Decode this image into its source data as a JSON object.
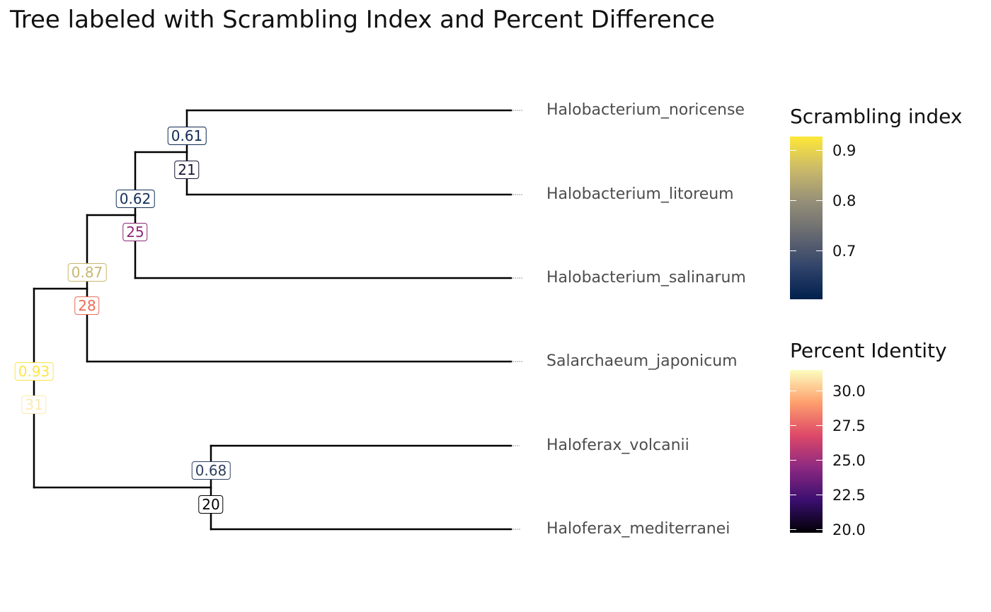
{
  "title": "Tree labeled with Scrambling Index and Percent Difference",
  "tips": [
    "Halobacterium_noricense",
    "Halobacterium_litoreum",
    "Halobacterium_salinarum",
    "Salarchaeum_japonicum",
    "Haloferax_volcanii",
    "Haloferax_mediterranei"
  ],
  "nodes": [
    {
      "id": "n61",
      "scrambling": "0.61",
      "identity": "21",
      "scrambling_color": "#102a55",
      "identity_color": "#1d1438"
    },
    {
      "id": "n62",
      "scrambling": "0.62",
      "identity": "25",
      "scrambling_color": "#13305a",
      "identity_color": "#8c2878"
    },
    {
      "id": "n87",
      "scrambling": "0.87",
      "identity": "28",
      "scrambling_color": "#c9b771",
      "identity_color": "#ec6a56"
    },
    {
      "id": "n93",
      "scrambling": "0.93",
      "identity": "31",
      "scrambling_color": "#fbe548",
      "identity_color": "#fde9b0"
    },
    {
      "id": "n68",
      "scrambling": "0.68",
      "identity": "20",
      "scrambling_color": "#2f4160",
      "identity_color": "#000004"
    }
  ],
  "legend_scrambling": {
    "title": "Scrambling index",
    "ticks": [
      {
        "label": "0.9",
        "value": 0.9
      },
      {
        "label": "0.8",
        "value": 0.8
      },
      {
        "label": "0.7",
        "value": 0.7
      }
    ],
    "range": [
      0.61,
      0.93
    ],
    "colors": [
      "#00204d",
      "#31446b",
      "#666970",
      "#958f78",
      "#cbba69",
      "#fee838"
    ]
  },
  "legend_identity": {
    "title": "Percent Identity",
    "ticks": [
      {
        "label": "30.0",
        "value": 30.0
      },
      {
        "label": "27.5",
        "value": 27.5
      },
      {
        "label": "25.0",
        "value": 25.0
      },
      {
        "label": "22.5",
        "value": 22.5
      },
      {
        "label": "20.0",
        "value": 20.0
      }
    ],
    "range": [
      20,
      31.7
    ],
    "colors": [
      "#000004",
      "#3b0f70",
      "#8c2981",
      "#de4968",
      "#fe9f6d",
      "#fcfdbf"
    ]
  }
}
